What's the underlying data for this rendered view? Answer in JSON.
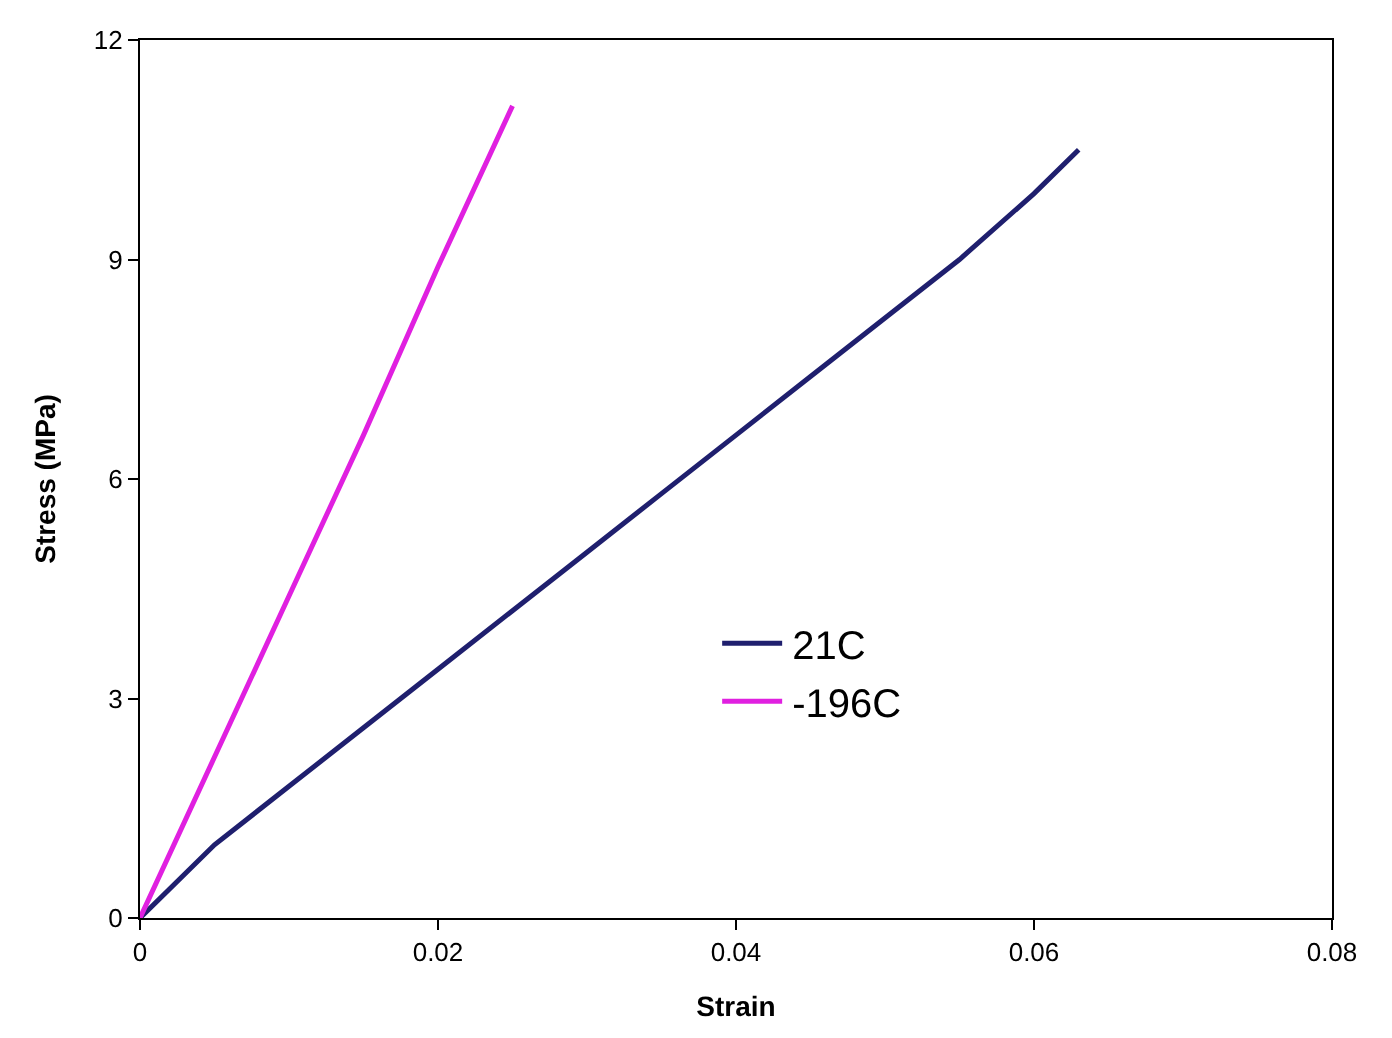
{
  "chart_data": {
    "type": "line",
    "xlabel": "Strain",
    "ylabel": "Stress (MPa)",
    "xlim": [
      0,
      0.08
    ],
    "xticks": [
      0,
      0.02,
      0.04,
      0.06,
      0.08
    ],
    "ylim": [
      0,
      12
    ],
    "yticks": [
      0,
      3,
      6,
      9,
      12
    ],
    "legend": "right",
    "marker": "none",
    "line_style": "solid",
    "series": [
      {
        "name": "21C",
        "color": "#1f1f6e",
        "x": [
          0,
          0.002,
          0.005,
          0.01,
          0.015,
          0.02,
          0.025,
          0.03,
          0.035,
          0.04,
          0.045,
          0.05,
          0.055,
          0.06,
          0.063
        ],
        "values": [
          0,
          0.4,
          1.0,
          1.8,
          2.6,
          3.4,
          4.2,
          5.0,
          5.8,
          6.6,
          7.4,
          8.2,
          9.0,
          9.9,
          10.5
        ]
      },
      {
        "name": "-196C",
        "color": "#e020e0",
        "x": [
          0,
          0.005,
          0.01,
          0.015,
          0.02,
          0.025
        ],
        "values": [
          0,
          2.2,
          4.4,
          6.6,
          8.9,
          11.1
        ]
      }
    ]
  }
}
